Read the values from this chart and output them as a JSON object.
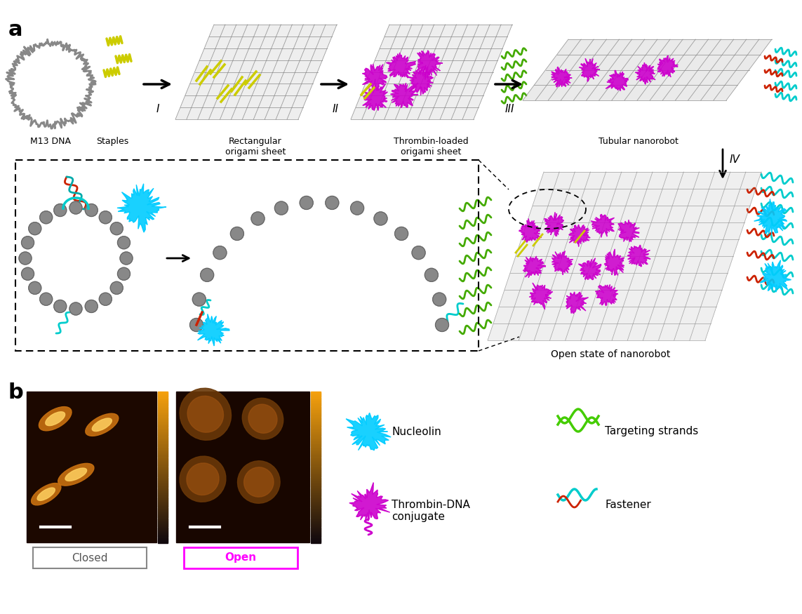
{
  "bg_color": "#ffffff",
  "label_m13": "M13 DNA",
  "label_staples": "Staples",
  "label_rect_origami": "Rectangular\norigami sheet",
  "label_thrombin": "Thrombin-loaded\norigami sheet",
  "label_tubular": "Tubular nanorobot",
  "label_open_state": "Open state of nanorobot",
  "label_step_I": "I",
  "label_step_II": "II",
  "label_step_III": "III",
  "label_step_IV": "IV",
  "label_closed": "Closed",
  "label_open": "Open",
  "label_nucleolin": "Nucleolin",
  "label_thrombin_conj": "Thrombin-DNA\nconjugate",
  "label_targeting": "Targeting strands",
  "label_fastener": "Fastener",
  "closed_box_color": "#888888",
  "open_box_color": "#ff00ff",
  "nucleolin_color": "#00ccff",
  "thrombin_color": "#cc00cc",
  "targeting_color": "#44cc00",
  "fastener_color": "#00cccc",
  "green_strand_color": "#44aa00",
  "red_strand_color": "#cc2200"
}
